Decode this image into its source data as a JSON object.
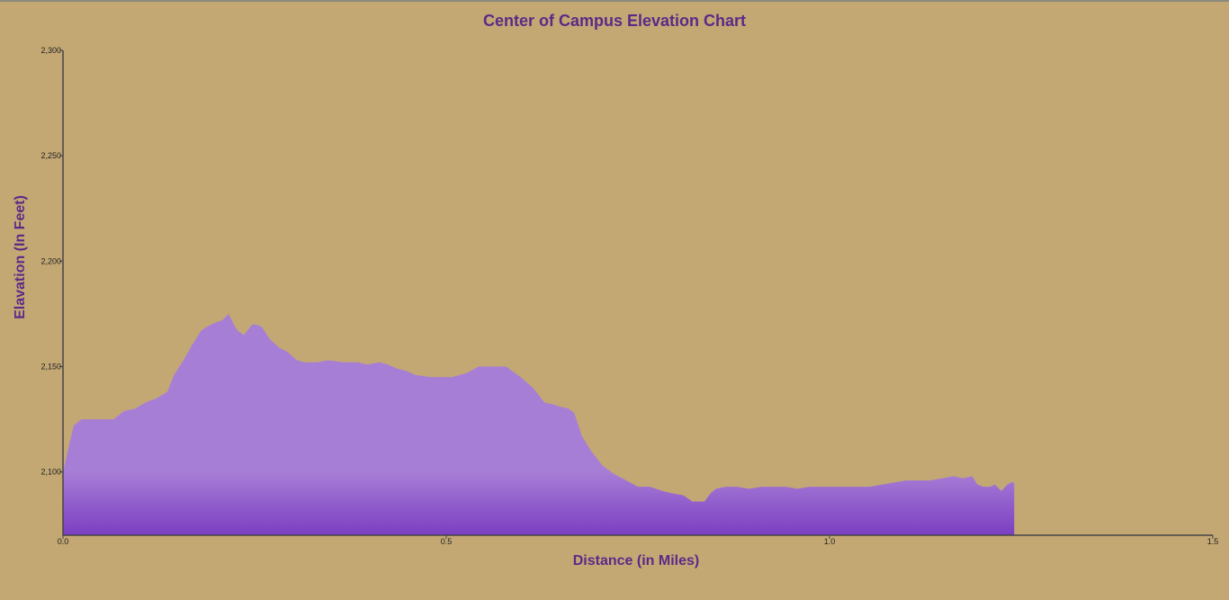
{
  "colors": {
    "background": "#c3a874",
    "text_accent": "#5b2a86",
    "area_top": "#a77ed6",
    "area_bottom": "#7b3ec2",
    "axis": "#444444"
  },
  "chart_data": {
    "type": "area",
    "title": "Center of Campus Elevation Chart",
    "xlabel": "Distance (in Miles)",
    "ylabel": "Elavation (In Feet)",
    "xlim": [
      0,
      1.5
    ],
    "ylim": [
      2070,
      2300
    ],
    "x_ticks": [
      "0.0",
      "0.5",
      "1.0",
      "1.5"
    ],
    "y_ticks": [
      "2,100",
      "2,150",
      "2,200",
      "2,250",
      "2,300"
    ],
    "grid": false,
    "legend": "none",
    "series": [
      {
        "x": [
          0.0,
          0.014,
          0.024,
          0.035,
          0.047,
          0.059,
          0.066,
          0.08,
          0.094,
          0.108,
          0.122,
          0.136,
          0.145,
          0.157,
          0.168,
          0.18,
          0.188,
          0.2,
          0.208,
          0.216,
          0.223,
          0.228,
          0.236,
          0.247,
          0.251,
          0.259,
          0.27,
          0.282,
          0.293,
          0.305,
          0.315,
          0.331,
          0.346,
          0.366,
          0.385,
          0.397,
          0.413,
          0.424,
          0.436,
          0.448,
          0.46,
          0.48,
          0.495,
          0.507,
          0.527,
          0.542,
          0.558,
          0.578,
          0.597,
          0.613,
          0.628,
          0.64,
          0.648,
          0.66,
          0.667,
          0.677,
          0.689,
          0.704,
          0.719,
          0.735,
          0.75,
          0.766,
          0.782,
          0.793,
          0.809,
          0.821,
          0.837,
          0.845,
          0.852,
          0.864,
          0.88,
          0.895,
          0.911,
          0.927,
          0.943,
          0.958,
          0.974,
          0.99,
          1.005,
          1.021,
          1.037,
          1.052,
          1.068,
          1.084,
          1.1,
          1.115,
          1.131,
          1.147,
          1.162,
          1.174,
          1.186,
          1.193,
          1.201,
          1.209,
          1.216,
          1.224,
          1.232,
          1.237,
          1.241
        ],
        "values": [
          2100,
          2122,
          2125,
          2125,
          2125,
          2125,
          2125,
          2129,
          2130,
          2133,
          2135,
          2138,
          2146,
          2153,
          2160,
          2167,
          2169,
          2171,
          2172,
          2175,
          2170,
          2167,
          2165,
          2170,
          2170,
          2169,
          2163,
          2159,
          2157,
          2153,
          2152,
          2152,
          2153,
          2152,
          2152,
          2151,
          2152,
          2151,
          2149,
          2148,
          2146,
          2145,
          2145,
          2145,
          2147,
          2150,
          2150,
          2150,
          2145,
          2140,
          2133,
          2132,
          2131,
          2130,
          2128,
          2117,
          2110,
          2103,
          2099,
          2096,
          2093,
          2093,
          2091,
          2090,
          2089,
          2086,
          2086,
          2090,
          2092,
          2093,
          2093,
          2092,
          2093,
          2093,
          2093,
          2092,
          2093,
          2093,
          2093,
          2093,
          2093,
          2093,
          2094,
          2095,
          2096,
          2096,
          2096,
          2097,
          2098,
          2097,
          2098,
          2094,
          2093,
          2093,
          2094,
          2091,
          2094,
          2095,
          2095
        ]
      }
    ]
  }
}
